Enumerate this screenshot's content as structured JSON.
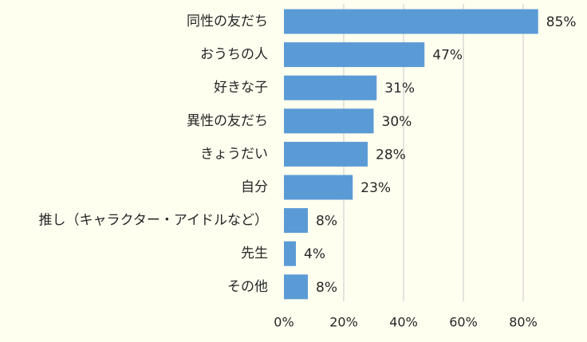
{
  "chart_data": {
    "type": "bar",
    "orientation": "horizontal",
    "categories": [
      "同性の友だち",
      "おうちの人",
      "好きな子",
      "異性の友だち",
      "きょうだい",
      "自分",
      "推し（キャラクター・アイドルなど）",
      "先生",
      "その他"
    ],
    "values": [
      85,
      47,
      31,
      30,
      28,
      23,
      8,
      4,
      8
    ],
    "value_labels": [
      "85%",
      "47%",
      "31%",
      "30%",
      "28%",
      "23%",
      "8%",
      "4%",
      "8%"
    ],
    "xlim": [
      0,
      80
    ],
    "x_ticks": [
      0,
      20,
      40,
      60,
      80
    ],
    "x_tick_labels": [
      "0%",
      "20%",
      "40%",
      "60%",
      "80%"
    ],
    "grid": true,
    "legend": false,
    "colors": {
      "bar": "#5b9bd5",
      "background": "#fffff0",
      "grid": "#d0d0d0",
      "text": "#262626"
    }
  }
}
